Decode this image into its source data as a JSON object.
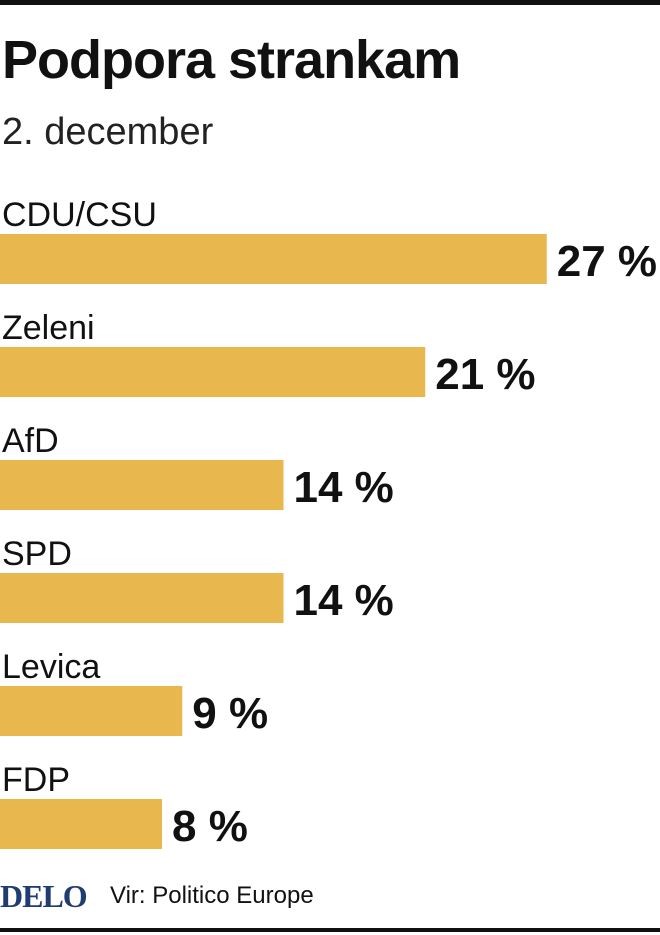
{
  "chart_data": {
    "type": "bar",
    "orientation": "horizontal",
    "title": "Podpora strankam",
    "subtitle": "2. december",
    "categories": [
      "CDU/CSU",
      "Zeleni",
      "AfD",
      "SPD",
      "Levica",
      "FDP"
    ],
    "values": [
      27,
      21,
      14,
      14,
      9,
      8
    ],
    "value_labels": [
      "27 %",
      "21 %",
      "14 %",
      "14 %",
      "9 %",
      "8 %"
    ],
    "bar_color": "#e8b74e",
    "grid": false
  },
  "footer": {
    "logo": "DELO",
    "source": "Vir: Politico Europe",
    "logo_color": "#1f3c73"
  }
}
